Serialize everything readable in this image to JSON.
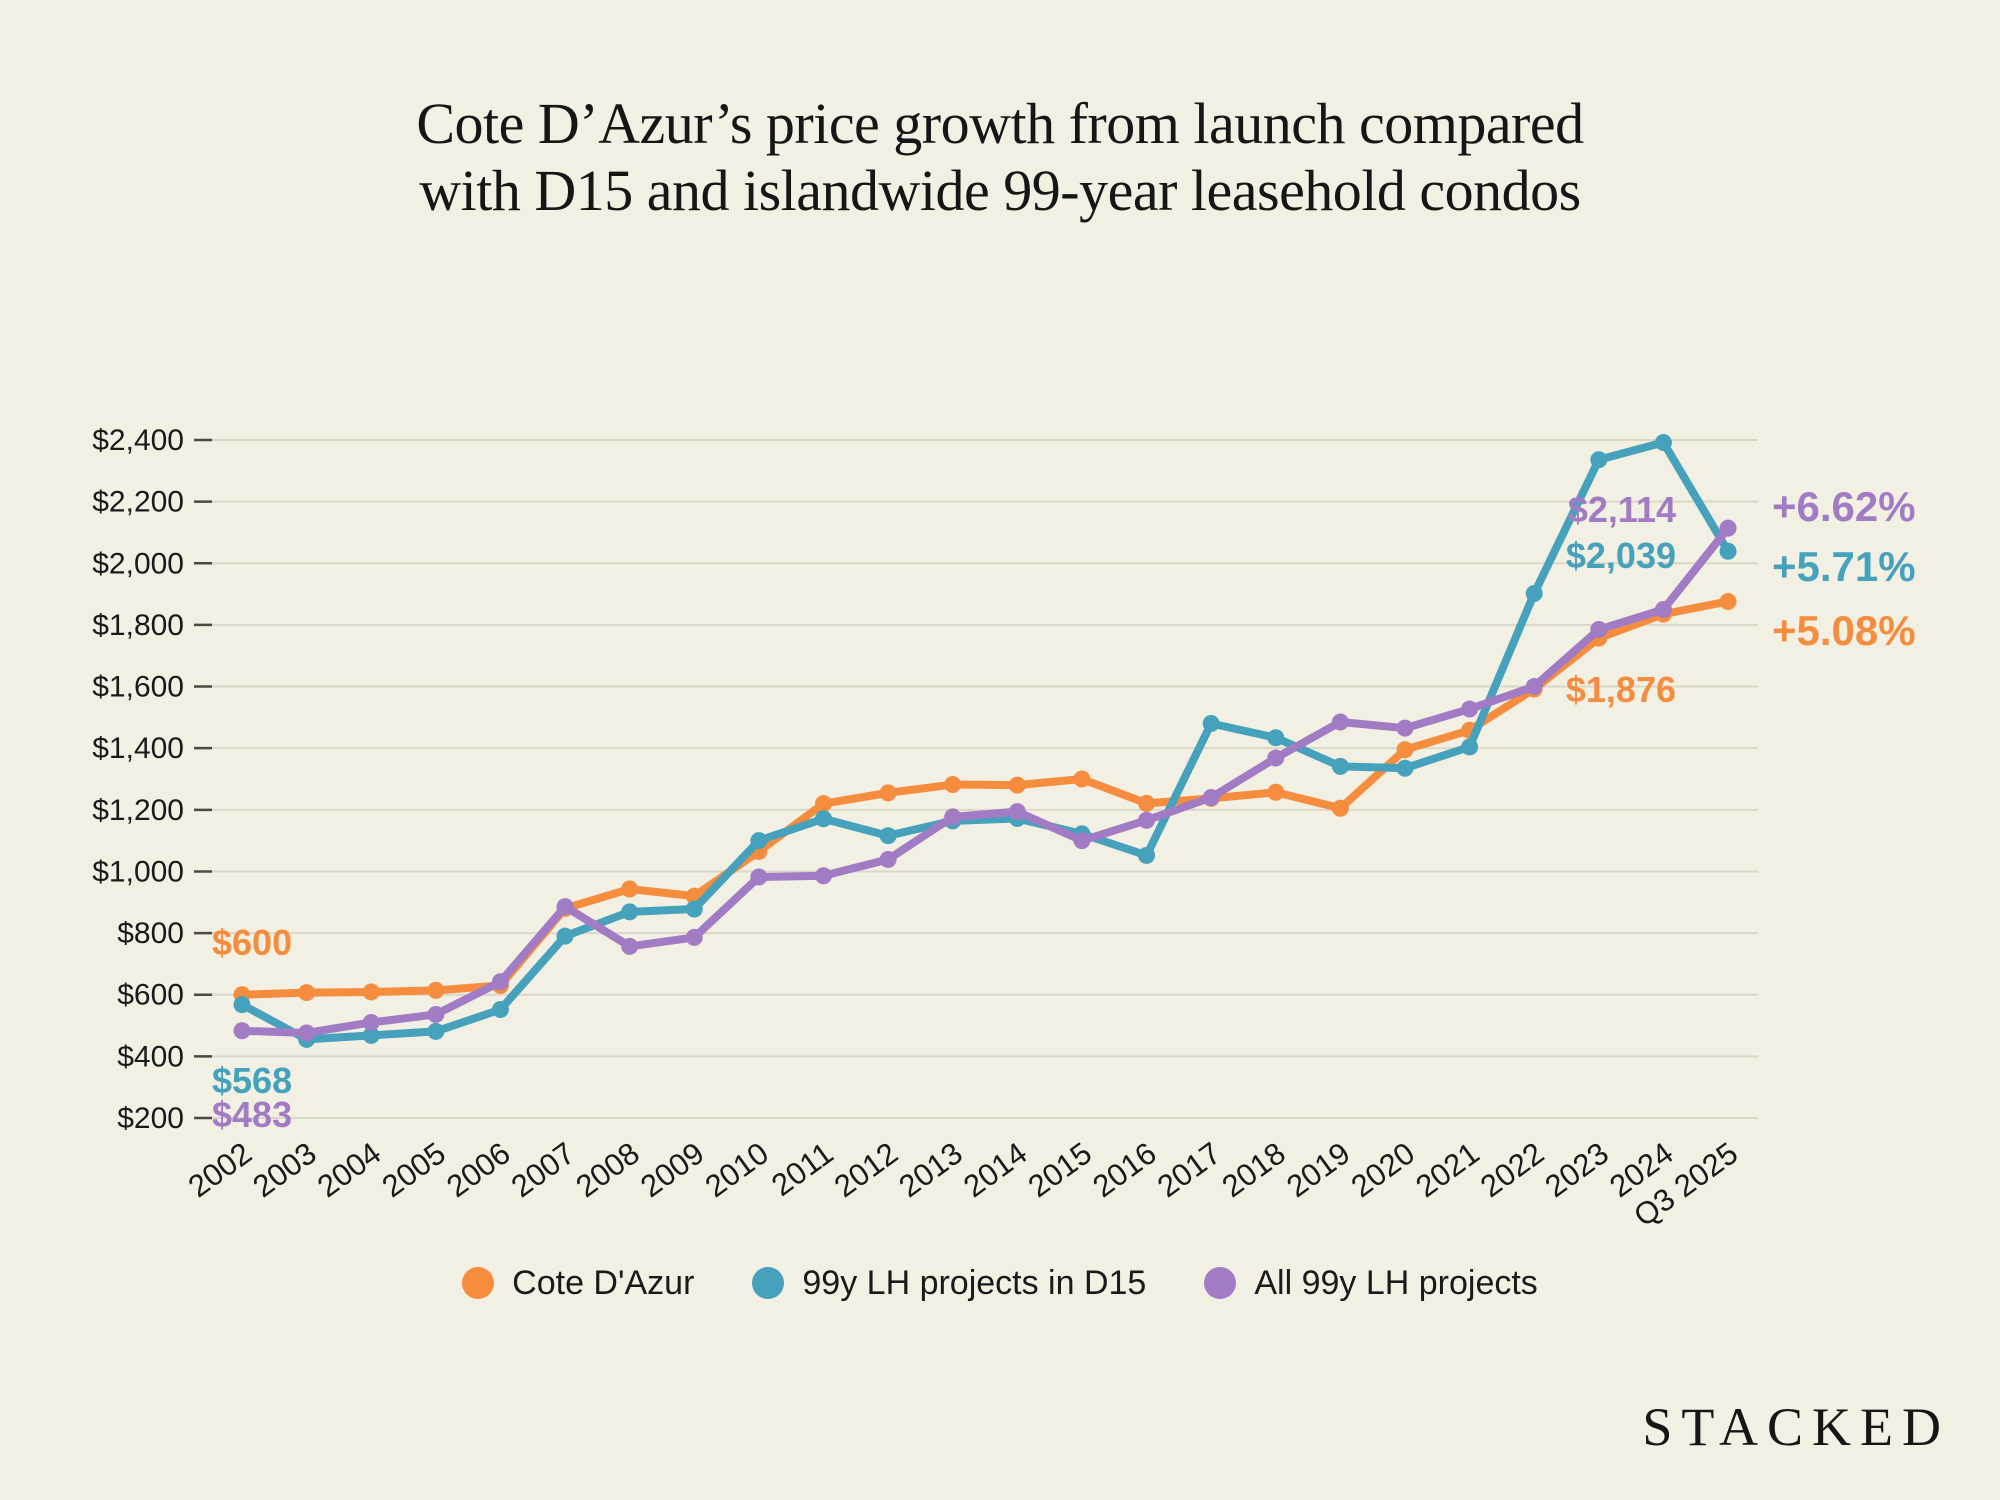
{
  "title": {
    "line1": "Cote D’Azur’s price growth from launch compared",
    "line2": "with D15 and islandwide 99-year leasehold condos"
  },
  "watermark": "STACKED",
  "colors": {
    "background": "#F2EFE3",
    "grid": "#DCD8C6",
    "tick": "#4A4A44",
    "axis_text": "#1A1A1A",
    "title_text": "#161616",
    "orange": "#F68D3E",
    "teal": "#45A1BC",
    "purple": "#A17CC5"
  },
  "chart_data": {
    "type": "line",
    "categories": [
      "2002",
      "2003",
      "2004",
      "2005",
      "2006",
      "2007",
      "2008",
      "2009",
      "2010",
      "2011",
      "2012",
      "2013",
      "2014",
      "2015",
      "2016",
      "2017",
      "2018",
      "2019",
      "2020",
      "2021",
      "2022",
      "2023",
      "2024",
      "Q3 2025"
    ],
    "series": [
      {
        "name": "Cote D'Azur",
        "color": "orange",
        "values": [
          600,
          607,
          609,
          614,
          630,
          880,
          943,
          920,
          1065,
          1220,
          1255,
          1282,
          1280,
          1300,
          1221,
          1237,
          1257,
          1205,
          1395,
          1458,
          1592,
          1757,
          1835,
          1876
        ]
      },
      {
        "name": "99y LH projects in D15",
        "color": "teal",
        "values": [
          568,
          455,
          468,
          481,
          552,
          790,
          869,
          878,
          1100,
          1171,
          1116,
          1164,
          1172,
          1122,
          1052,
          1480,
          1434,
          1341,
          1335,
          1404,
          1902,
          2336,
          2392,
          2039
        ]
      },
      {
        "name": "All 99y LH projects",
        "color": "purple",
        "values": [
          483,
          476,
          510,
          536,
          642,
          886,
          757,
          786,
          982,
          986,
          1039,
          1177,
          1194,
          1100,
          1166,
          1240,
          1368,
          1485,
          1465,
          1527,
          1600,
          1785,
          1850,
          2114
        ]
      }
    ],
    "ylim": [
      200,
      2400
    ],
    "ytick_step": 200,
    "ytick_labels": [
      "$200",
      "$400",
      "$600",
      "$800",
      "$1,000",
      "$1,200",
      "$1,400",
      "$1,600",
      "$1,800",
      "$2,000",
      "$2,200",
      "$2,400"
    ],
    "grid": true,
    "legend_position": "bottom",
    "x_label_rotation": -36,
    "annotations": {
      "start": [
        {
          "text": "$600",
          "series": "Cote D'Azur",
          "color": "orange"
        },
        {
          "text": "$568",
          "series": "99y LH projects in D15",
          "color": "teal"
        },
        {
          "text": "$483",
          "series": "All 99y LH projects",
          "color": "purple"
        }
      ],
      "end": [
        {
          "text": "$2,114",
          "series": "All 99y LH projects",
          "color": "purple"
        },
        {
          "text": "$2,039",
          "series": "99y LH projects in D15",
          "color": "teal"
        },
        {
          "text": "$1,876",
          "series": "Cote D'Azur",
          "color": "orange"
        }
      ],
      "growth": [
        {
          "text": "+6.62%",
          "series": "All 99y LH projects",
          "color": "purple"
        },
        {
          "text": "+5.71%",
          "series": "99y LH projects in D15",
          "color": "teal"
        },
        {
          "text": "+5.08%",
          "series": "Cote D'Azur",
          "color": "orange"
        }
      ]
    }
  }
}
